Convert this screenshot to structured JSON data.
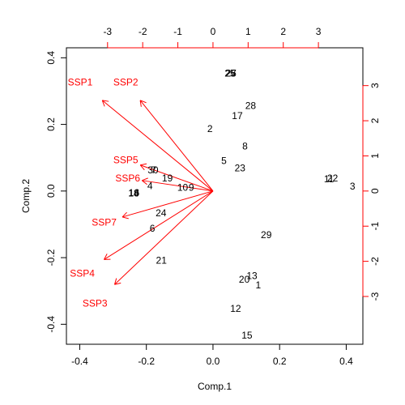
{
  "chart_data": {
    "type": "biplot",
    "xlabel": "Comp.1",
    "ylabel": "Comp.2",
    "xlim": [
      -0.44,
      0.45
    ],
    "ylim": [
      -0.46,
      0.43
    ],
    "bottom_ticks": [
      -0.4,
      -0.2,
      0.0,
      0.2,
      0.4
    ],
    "bottom_tick_labels": [
      "-0.4",
      "-0.2",
      "0.0",
      "0.2",
      "0.4"
    ],
    "left_ticks": [
      -0.4,
      -0.2,
      0.0,
      0.2,
      0.4
    ],
    "left_tick_labels": [
      "-0.4",
      "-0.2",
      "0.0",
      "0.2",
      "0.4"
    ],
    "top_ticks": [
      -3,
      -2,
      -1,
      0,
      1,
      2,
      3
    ],
    "top_tick_labels": [
      "-3",
      "-2",
      "-1",
      "0",
      "1",
      "2",
      "3"
    ],
    "right_ticks": [
      -3,
      -2,
      -1,
      0,
      1,
      2,
      3
    ],
    "right_tick_labels": [
      "-3",
      "-2",
      "-1",
      "0",
      "1",
      "2",
      "3"
    ],
    "loading_scale": 0.1055,
    "points": [
      {
        "label": "1",
        "x": 0.136,
        "y": -0.283
      },
      {
        "label": "2",
        "x": -0.009,
        "y": 0.187
      },
      {
        "label": "3",
        "x": 0.419,
        "y": 0.014
      },
      {
        "label": "4",
        "x": -0.189,
        "y": 0.015
      },
      {
        "label": "5",
        "x": 0.033,
        "y": 0.091
      },
      {
        "label": "6",
        "x": -0.182,
        "y": -0.112
      },
      {
        "label": "7",
        "x": -0.178,
        "y": 0.063
      },
      {
        "label": "8",
        "x": 0.096,
        "y": 0.135
      },
      {
        "label": "9",
        "x": -0.065,
        "y": 0.01
      },
      {
        "label": "10",
        "x": -0.091,
        "y": 0.01
      },
      {
        "label": "11",
        "x": 0.348,
        "y": 0.036
      },
      {
        "label": "12",
        "x": 0.068,
        "y": -0.353
      },
      {
        "label": "13",
        "x": 0.117,
        "y": -0.255
      },
      {
        "label": "14",
        "x": -0.238,
        "y": -0.007
      },
      {
        "label": "15",
        "x": 0.102,
        "y": -0.433
      },
      {
        "label": "16",
        "x": -0.237,
        "y": -0.005
      },
      {
        "label": "17",
        "x": 0.073,
        "y": 0.226
      },
      {
        "label": "18",
        "x": -0.238,
        "y": -0.007
      },
      {
        "label": "19",
        "x": -0.137,
        "y": 0.038
      },
      {
        "label": "20",
        "x": 0.094,
        "y": -0.265
      },
      {
        "label": "21",
        "x": -0.155,
        "y": -0.208
      },
      {
        "label": "22",
        "x": 0.359,
        "y": 0.039
      },
      {
        "label": "23",
        "x": 0.081,
        "y": 0.069
      },
      {
        "label": "24",
        "x": -0.156,
        "y": -0.066
      },
      {
        "label": "25",
        "x": 0.051,
        "y": 0.354
      },
      {
        "label": "26",
        "x": 0.054,
        "y": 0.354
      },
      {
        "label": "27",
        "x": 0.054,
        "y": 0.354
      },
      {
        "label": "28",
        "x": 0.113,
        "y": 0.256
      },
      {
        "label": "29",
        "x": 0.16,
        "y": -0.132
      },
      {
        "label": "30",
        "x": -0.18,
        "y": 0.063
      }
    ],
    "loadings": [
      {
        "name": "SSP1",
        "x": -3.15,
        "y": 2.58
      },
      {
        "name": "SSP2",
        "x": -2.07,
        "y": 2.58
      },
      {
        "name": "SSP3",
        "x": -2.8,
        "y": -2.66
      },
      {
        "name": "SSP4",
        "x": -3.1,
        "y": -1.95
      },
      {
        "name": "SSP5",
        "x": -2.07,
        "y": 0.74
      },
      {
        "name": "SSP6",
        "x": -2.02,
        "y": 0.3
      },
      {
        "name": "SSP7",
        "x": -2.58,
        "y": -0.74
      }
    ],
    "colors": {
      "points": "#000000",
      "loadings": "#ff0000"
    }
  }
}
